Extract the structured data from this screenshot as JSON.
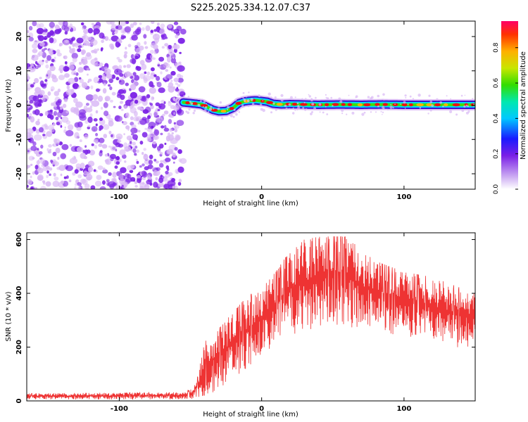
{
  "title": "S225.2025.334.12.07.C37",
  "colors": {
    "snr_line": "#ee3333",
    "scatter_purple": "#7a1fe6",
    "scatter_light": "#d9b8f5",
    "axis": "#000000"
  },
  "chart_data": [
    {
      "type": "heatmap",
      "title": "S225.2025.334.12.07.C37",
      "xlabel": "Height of straight line (km)",
      "ylabel": "Frequency (Hz)",
      "xlim": [
        -165,
        150
      ],
      "ylim": [
        -24.5,
        24.5
      ],
      "xticks": [
        -100,
        0,
        100
      ],
      "yticks": [
        -20,
        -10,
        0,
        10,
        20
      ],
      "noise_region": {
        "x_from": -165,
        "x_to": -55,
        "freq_from": -24.5,
        "freq_to": 24.5
      },
      "ridge": {
        "x": [
          -55,
          -48,
          -42,
          -38,
          -34,
          -30,
          -25,
          -20,
          -16,
          -12,
          -8,
          -4,
          0,
          4,
          8,
          14,
          20,
          30,
          40,
          55,
          70,
          85,
          100,
          115,
          130,
          150
        ],
        "freq": [
          0.8,
          0.5,
          0.2,
          -0.6,
          -1.4,
          -1.8,
          -1.7,
          -0.8,
          0.6,
          1.1,
          1.3,
          1.4,
          1.2,
          1.0,
          0.4,
          0.2,
          0.3,
          0.2,
          0.1,
          0.2,
          0.1,
          0.2,
          0.1,
          0.1,
          0.1,
          0.1
        ]
      },
      "colorbar": {
        "label": "Normalized spectral amplitude",
        "range": [
          0.0,
          0.95
        ],
        "ticks": [
          "0.0",
          "0.2",
          "0.4",
          "0.6",
          "0.8"
        ],
        "tick_values": [
          0.0,
          0.2,
          0.4,
          0.6,
          0.8
        ]
      }
    },
    {
      "type": "line",
      "xlabel": "Height of straight line (km)",
      "ylabel": "SNR (10 * v/v)",
      "xlim": [
        -165,
        150
      ],
      "ylim": [
        0,
        625
      ],
      "xticks": [
        -100,
        0,
        100
      ],
      "yticks": [
        0,
        200,
        400,
        600
      ],
      "envelope": {
        "x": [
          -165,
          -60,
          -50,
          -45,
          -40,
          -30,
          -20,
          -10,
          0,
          10,
          20,
          30,
          40,
          50,
          60,
          70,
          80,
          90,
          100,
          110,
          120,
          130,
          140,
          150
        ],
        "upper": [
          28,
          32,
          40,
          90,
          220,
          270,
          330,
          390,
          420,
          480,
          560,
          600,
          610,
          612,
          610,
          560,
          520,
          500,
          480,
          470,
          460,
          440,
          420,
          405
        ],
        "lower": [
          5,
          5,
          6,
          10,
          20,
          40,
          80,
          120,
          160,
          200,
          240,
          260,
          270,
          280,
          275,
          270,
          260,
          250,
          240,
          230,
          220,
          210,
          190,
          180
        ]
      }
    }
  ]
}
